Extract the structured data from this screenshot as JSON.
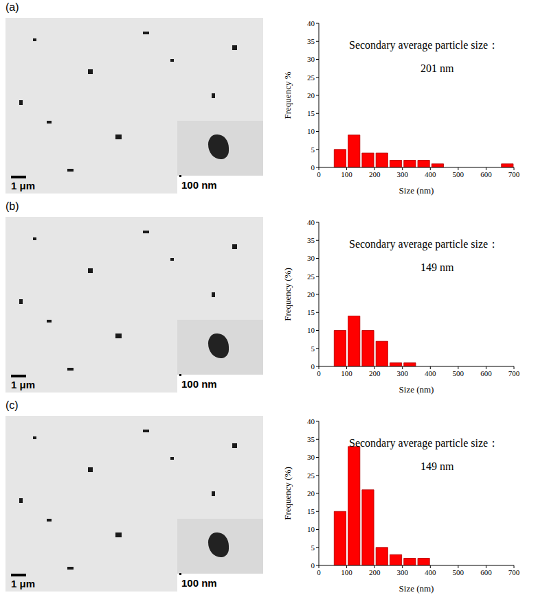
{
  "chart_data": [
    {
      "panel": "(a)",
      "type": "histogram",
      "bins": [
        50,
        100,
        150,
        200,
        250,
        300,
        350,
        400,
        450,
        500,
        550,
        600,
        650,
        700
      ],
      "counts": [
        5,
        9,
        4,
        4,
        2,
        2,
        2,
        1,
        0,
        0,
        0,
        0,
        1
      ],
      "color": "#ff0000",
      "xlabel": "Size (nm)",
      "ylabel": "Frequency %",
      "xlim": [
        0,
        700
      ],
      "xticks": [
        0,
        100,
        200,
        300,
        400,
        500,
        600,
        700
      ],
      "ylim": [
        0,
        40
      ],
      "yticks": [
        0,
        5,
        10,
        15,
        20,
        25,
        30,
        35,
        40
      ],
      "grid": false,
      "annotations": [
        "Secondary average particle size：",
        "201 nm"
      ],
      "image": {
        "scale_bar": "1 μm",
        "inset_scale_bar": "100 nm"
      }
    },
    {
      "panel": "(b)",
      "type": "histogram",
      "bins": [
        50,
        100,
        150,
        200,
        250,
        300,
        350
      ],
      "counts": [
        10,
        14,
        10,
        7,
        1,
        1
      ],
      "color": "#ff0000",
      "xlabel": "Size (nm)",
      "ylabel": "Frequency (%)",
      "xlim": [
        0,
        700
      ],
      "xticks": [
        0,
        100,
        200,
        300,
        400,
        500,
        600,
        700
      ],
      "ylim": [
        0,
        40
      ],
      "yticks": [
        0,
        5,
        10,
        15,
        20,
        25,
        30,
        35,
        40
      ],
      "grid": false,
      "annotations": [
        "Secondary average particle size：",
        "149 nm"
      ],
      "image": {
        "scale_bar": "1 μm",
        "inset_scale_bar": "100 nm"
      }
    },
    {
      "panel": "(c)",
      "type": "histogram",
      "bins": [
        50,
        100,
        150,
        200,
        250,
        300,
        350,
        400
      ],
      "counts": [
        15,
        33,
        21,
        5,
        3,
        2,
        2
      ],
      "color": "#ff0000",
      "xlabel": "Size (nm)",
      "ylabel": "Frequency (%)",
      "xlim": [
        0,
        700
      ],
      "xticks": [
        0,
        100,
        200,
        300,
        400,
        500,
        600,
        700
      ],
      "ylim": [
        0,
        40
      ],
      "yticks": [
        0,
        5,
        10,
        15,
        20,
        25,
        30,
        35,
        40
      ],
      "grid": false,
      "annotations": [
        "Secondary average particle size：",
        "149 nm"
      ],
      "image": {
        "scale_bar": "1 μm",
        "inset_scale_bar": "100 nm"
      }
    }
  ]
}
